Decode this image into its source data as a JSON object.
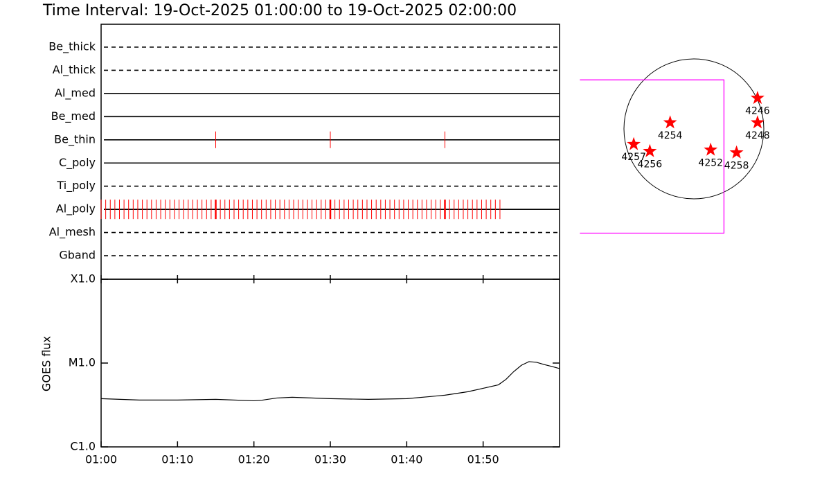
{
  "title": "Time Interval: 19-Oct-2025 01:00:00 to 19-Oct-2025 02:00:00",
  "chart_data": [
    {
      "type": "timeline",
      "categories": [
        "Be_thick",
        "Al_thick",
        "Al_med",
        "Be_med",
        "Be_thin",
        "C_poly",
        "Ti_poly",
        "Al_poly",
        "Al_mesh",
        "Gband"
      ],
      "styles": [
        "dashed",
        "dashed",
        "solid",
        "solid",
        "solid",
        "solid",
        "dashed",
        "solid",
        "dashed",
        "dashed"
      ],
      "xlim": [
        0,
        60
      ],
      "color": "#ff0000",
      "events": [
        [],
        [],
        [],
        [],
        [
          15,
          30,
          45
        ],
        [],
        [],
        [
          0,
          0.6,
          1.2,
          1.8,
          2.4,
          3,
          3.6,
          4.2,
          4.8,
          5.4,
          6,
          6.6,
          7.2,
          7.8,
          8.4,
          9,
          9.6,
          10.2,
          10.8,
          11.4,
          12,
          12.6,
          13.2,
          13.8,
          14.4,
          15,
          15.6,
          16.2,
          16.8,
          17.4,
          18,
          18.6,
          19.2,
          19.8,
          20.4,
          21,
          21.6,
          22.2,
          22.8,
          23.4,
          24,
          24.6,
          25.2,
          25.8,
          26.4,
          27,
          27.6,
          28.2,
          28.8,
          29.4,
          30,
          30.6,
          31.2,
          31.8,
          32.4,
          33,
          33.6,
          34.2,
          34.8,
          35.4,
          36,
          36.6,
          37.2,
          37.8,
          38.4,
          39,
          39.6,
          40.2,
          40.8,
          41.4,
          42,
          42.6,
          43.2,
          43.8,
          44.4,
          45,
          45.6,
          46.2,
          46.8,
          47.4,
          48,
          48.6,
          49.2,
          49.8,
          50.4,
          51,
          51.6,
          52.2
        ],
        [],
        []
      ]
    },
    {
      "type": "line",
      "y_label": "GOES flux",
      "log_y": true,
      "xlim": [
        0,
        60
      ],
      "xticks": [
        {
          "value": 0,
          "label": "01:00"
        },
        {
          "value": 10,
          "label": "01:10"
        },
        {
          "value": 20,
          "label": "01:20"
        },
        {
          "value": 30,
          "label": "01:30"
        },
        {
          "value": 40,
          "label": "01:40"
        },
        {
          "value": 50,
          "label": "01:50"
        }
      ],
      "ylim": [
        1e-06,
        0.0001
      ],
      "yticks": [
        {
          "value": 1e-06,
          "label": "C1.0"
        },
        {
          "value": 1e-05,
          "label": "M1.0"
        },
        {
          "value": 0.0001,
          "label": "X1.0"
        }
      ],
      "color": "#000000",
      "x": [
        0,
        5,
        10,
        15,
        20,
        21,
        23,
        25,
        30,
        35,
        40,
        43,
        45,
        48,
        50,
        52,
        53,
        54,
        55,
        56,
        57,
        58,
        59,
        60
      ],
      "values": [
        3.76e-06,
        3.62e-06,
        3.62e-06,
        3.69e-06,
        3.55e-06,
        3.6e-06,
        3.83e-06,
        3.91e-06,
        3.76e-06,
        3.69e-06,
        3.76e-06,
        3.98e-06,
        4.14e-06,
        4.55e-06,
        5e-06,
        5.5e-06,
        6.4e-06,
        7.9e-06,
        9.4e-06,
        1.04e-05,
        1.02e-05,
        9.6e-06,
        9.1e-06,
        8.6e-06
      ]
    },
    {
      "type": "disk",
      "color": "#ff0000",
      "fov_color": "#ff00ff",
      "fov": {
        "x": [
          -1.63,
          0.43
        ],
        "y": [
          -1.49,
          0.7
        ]
      },
      "points": [
        {
          "label": "4246",
          "x": 0.91,
          "y": 0.44
        },
        {
          "label": "4248",
          "x": 0.91,
          "y": 0.09
        },
        {
          "label": "4254",
          "x": -0.34,
          "y": 0.09
        },
        {
          "label": "4257",
          "x": -0.86,
          "y": -0.22
        },
        {
          "label": "4256",
          "x": -0.63,
          "y": -0.32
        },
        {
          "label": "4252",
          "x": 0.24,
          "y": -0.3
        },
        {
          "label": "4258",
          "x": 0.61,
          "y": -0.34
        }
      ]
    }
  ]
}
